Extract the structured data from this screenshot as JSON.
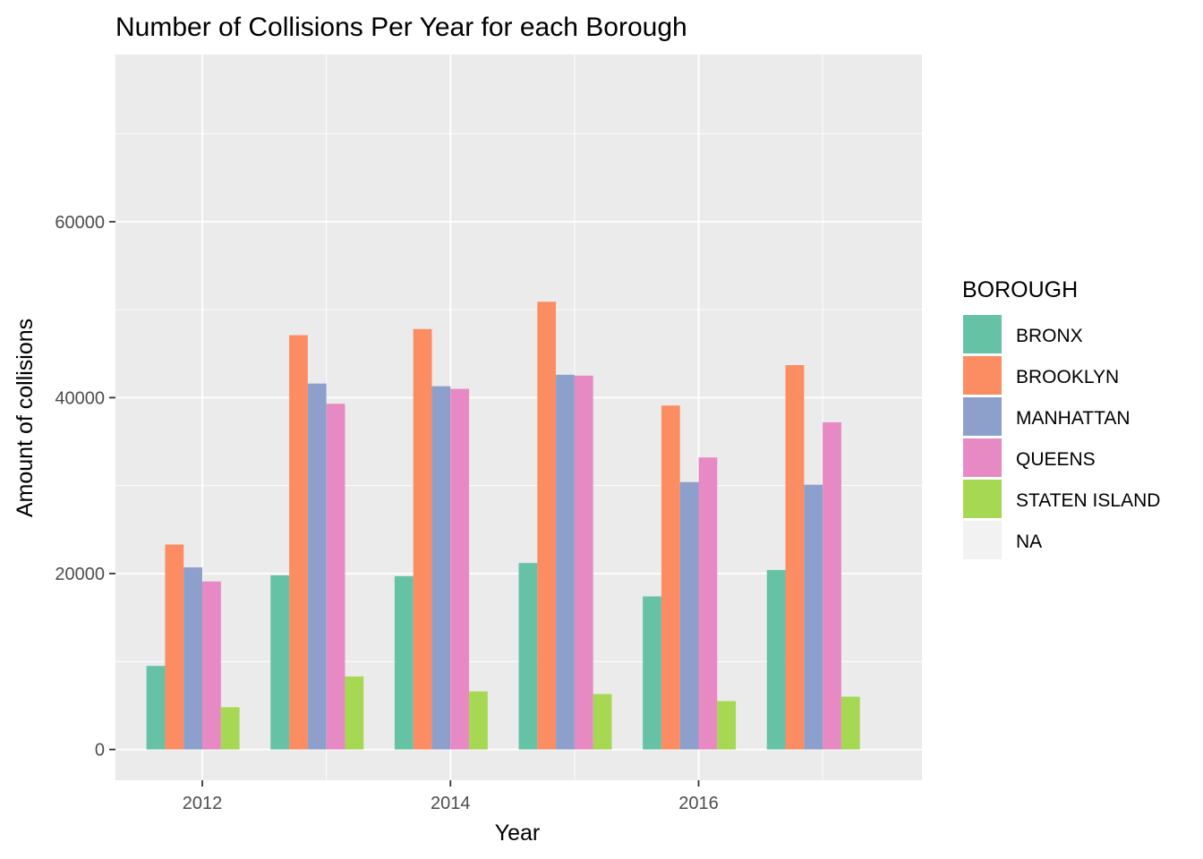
{
  "chart_data": {
    "type": "bar",
    "title": "Number of Collisions Per Year for each Borough",
    "xlabel": "Year",
    "ylabel": "Amount of collisions",
    "x": [
      2012,
      2013,
      2014,
      2015,
      2016,
      2017
    ],
    "x_tick_labels": [
      "2012",
      "2014",
      "2016"
    ],
    "x_tick_values": [
      2012,
      2014,
      2016
    ],
    "y_tick_labels": [
      "0",
      "20000",
      "40000",
      "60000"
    ],
    "y_tick_values": [
      0,
      20000,
      40000,
      60000
    ],
    "ylim": [
      -3500,
      79000
    ],
    "grid": true,
    "legend": {
      "title": "BOROUGH",
      "placement": "right"
    },
    "series": [
      {
        "name": "BRONX",
        "color": "#66c2a5",
        "values": [
          9500,
          19800,
          19700,
          21200,
          17400,
          20400
        ]
      },
      {
        "name": "BROOKLYN",
        "color": "#fc8d62",
        "values": [
          23300,
          47100,
          47800,
          50900,
          39100,
          43700
        ]
      },
      {
        "name": "MANHATTAN",
        "color": "#8da0cb",
        "values": [
          20700,
          41600,
          41300,
          42600,
          30400,
          30100
        ]
      },
      {
        "name": "QUEENS",
        "color": "#e78ac3",
        "values": [
          19100,
          39300,
          41000,
          42500,
          33200,
          37200
        ]
      },
      {
        "name": "STATEN ISLAND",
        "color": "#a6d854",
        "values": [
          4800,
          8300,
          6600,
          6300,
          5500,
          6000
        ]
      },
      {
        "name": "NA",
        "color": "#f2f2f2",
        "values": [
          0,
          0,
          0,
          0,
          0,
          0
        ]
      }
    ]
  }
}
